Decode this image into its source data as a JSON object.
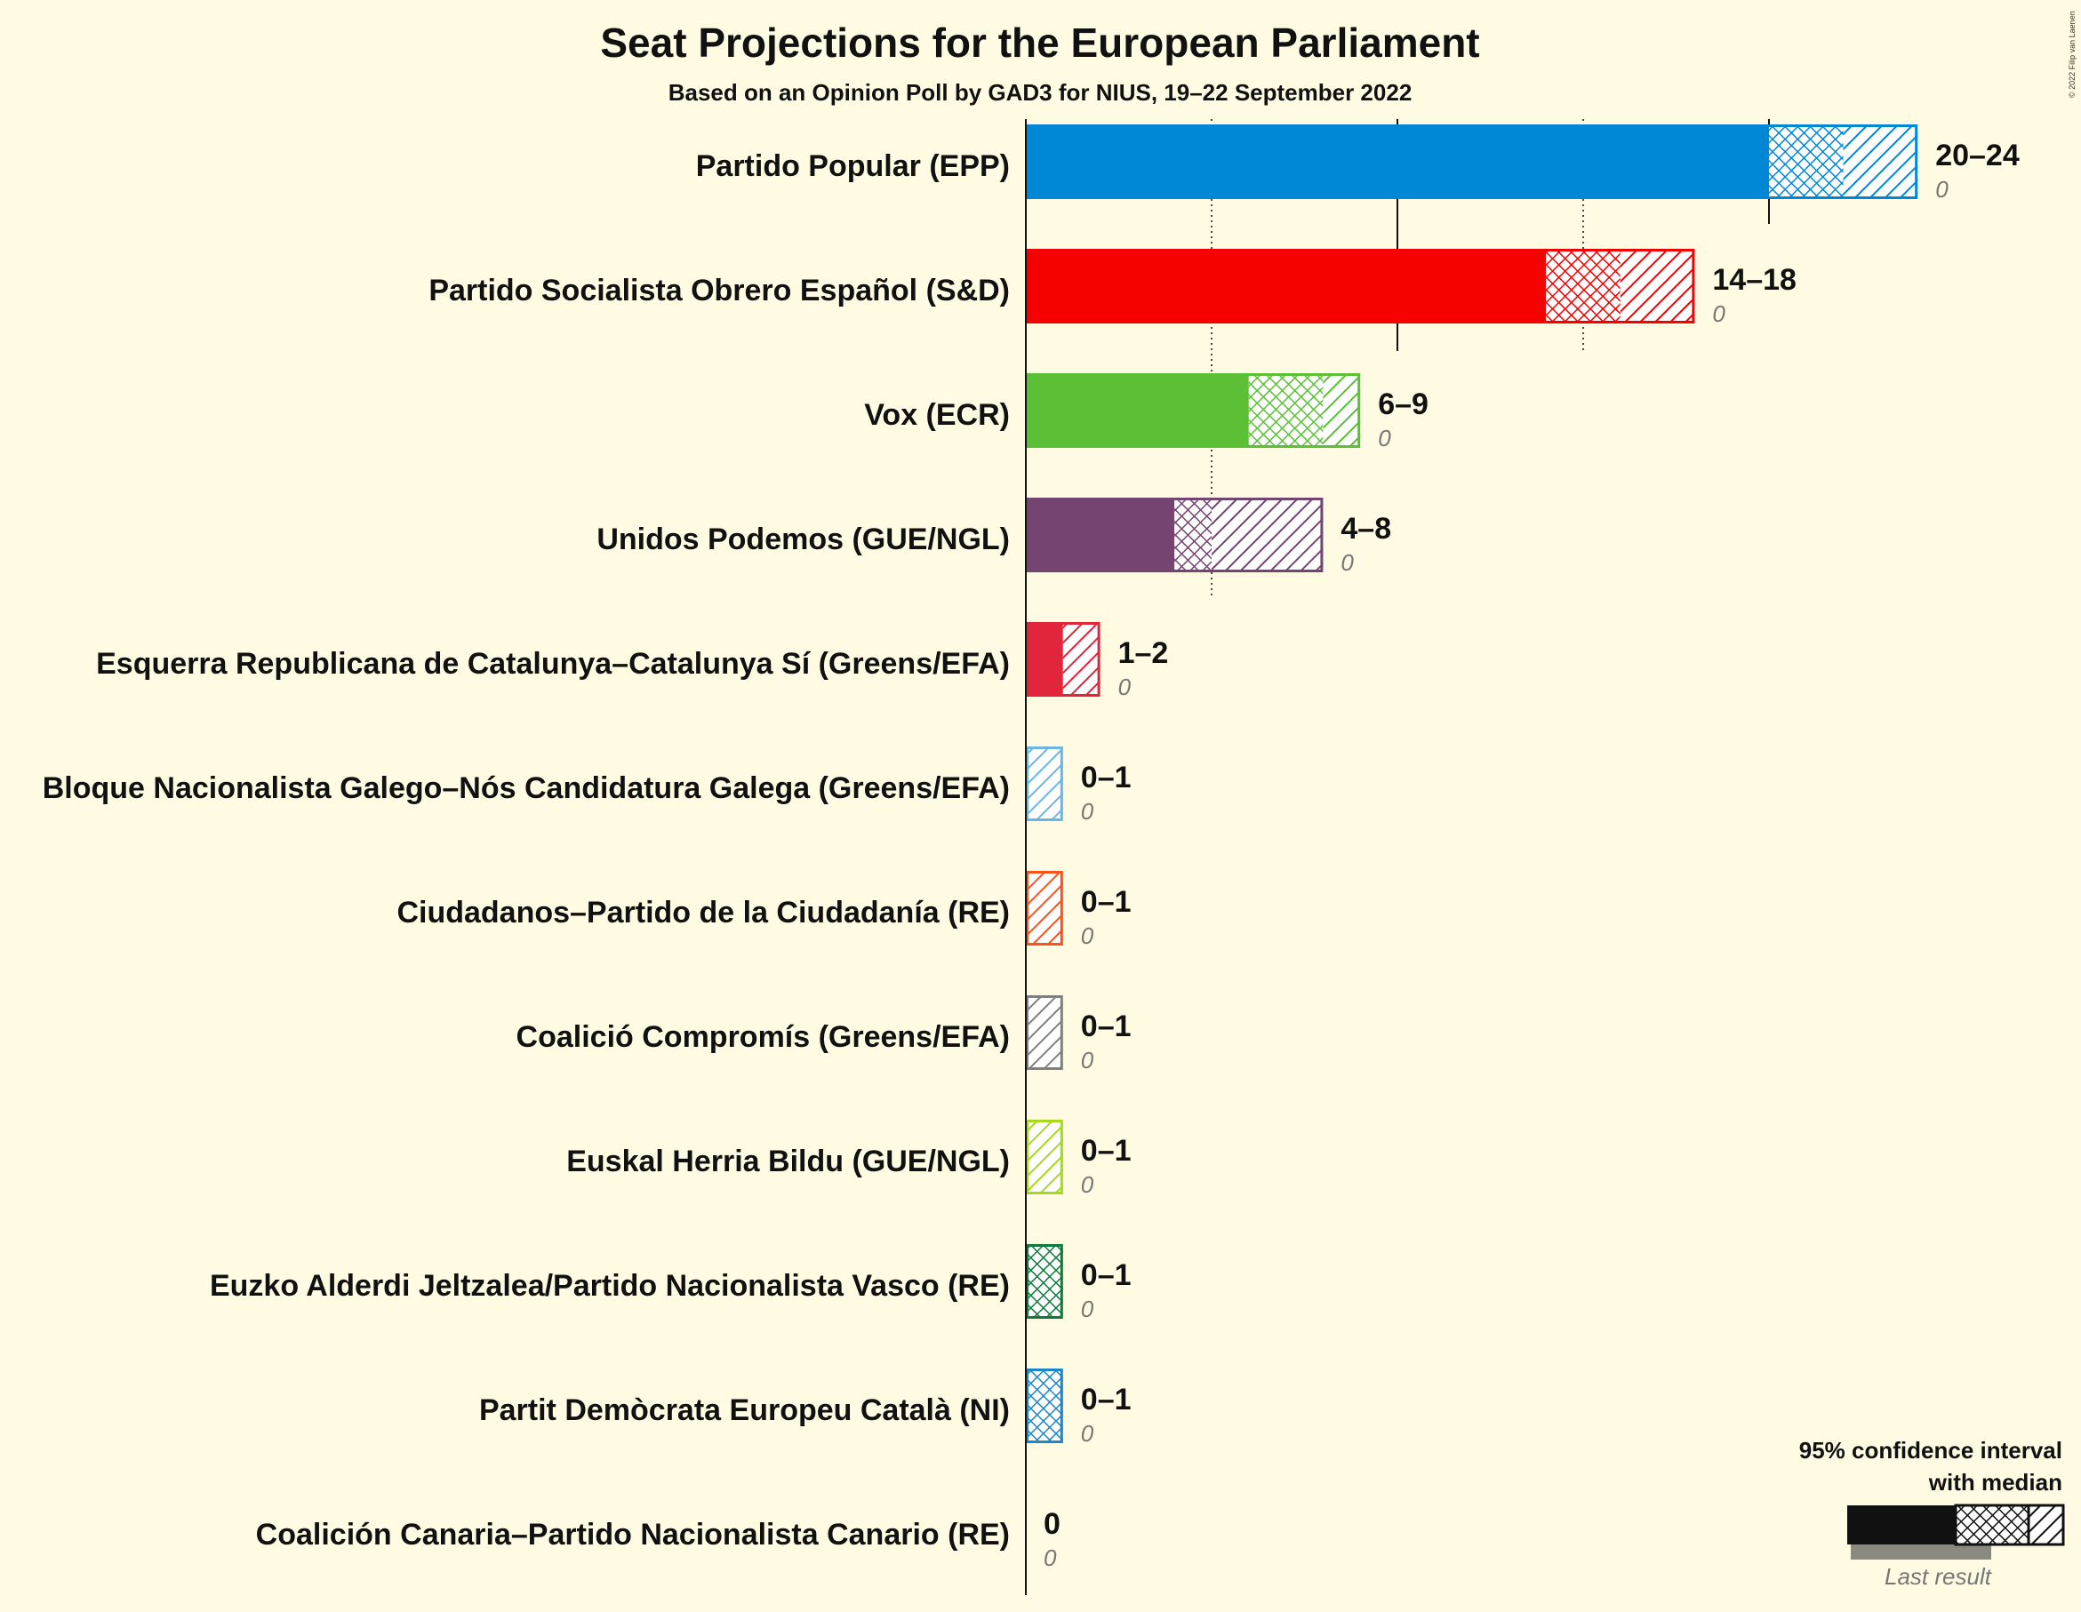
{
  "chart_data": {
    "type": "bar",
    "title": "Seat Projections for the European Parliament",
    "subtitle": "Based on an Opinion Poll by GAD3 for NIUS, 19–22 September 2022",
    "xlim": [
      0,
      24
    ],
    "gridlines": [
      5,
      10,
      15,
      20
    ],
    "series": [
      {
        "party": "Partido Popular (EPP)",
        "low": 20,
        "median": 22,
        "high": 24,
        "range_label": "20–24",
        "last_result": 0,
        "last_label": "0",
        "color": "#0088d6"
      },
      {
        "party": "Partido Socialista Obrero Español (S&D)",
        "low": 14,
        "median": 16,
        "high": 18,
        "range_label": "14–18",
        "last_result": 0,
        "last_label": "0",
        "color": "#f70000"
      },
      {
        "party": "Vox (ECR)",
        "low": 6,
        "median": 8,
        "high": 9,
        "range_label": "6–9",
        "last_result": 0,
        "last_label": "0",
        "color": "#5bc035"
      },
      {
        "party": "Unidos Podemos (GUE/NGL)",
        "low": 4,
        "median": 5,
        "high": 8,
        "range_label": "4–8",
        "last_result": 0,
        "last_label": "0",
        "color": "#744570"
      },
      {
        "party": "Esquerra Republicana de Catalunya–Catalunya Sí (Greens/EFA)",
        "low": 1,
        "median": 1,
        "high": 2,
        "range_label": "1–2",
        "last_result": 0,
        "last_label": "0",
        "color": "#e1263c"
      },
      {
        "party": "Bloque Nacionalista Galego–Nós Candidatura Galega (Greens/EFA)",
        "low": 0,
        "median": 0,
        "high": 1,
        "range_label": "0–1",
        "last_result": 0,
        "last_label": "0",
        "color": "#6bb5e4"
      },
      {
        "party": "Ciudadanos–Partido de la Ciudadanía (RE)",
        "low": 0,
        "median": 0,
        "high": 1,
        "range_label": "0–1",
        "last_result": 0,
        "last_label": "0",
        "color": "#f8531c"
      },
      {
        "party": "Coalició Compromís (Greens/EFA)",
        "low": 0,
        "median": 0,
        "high": 1,
        "range_label": "0–1",
        "last_result": 0,
        "last_label": "0",
        "color": "#808080"
      },
      {
        "party": "Euskal Herria Bildu (GUE/NGL)",
        "low": 0,
        "median": 0,
        "high": 1,
        "range_label": "0–1",
        "last_result": 0,
        "last_label": "0",
        "color": "#a6d81c"
      },
      {
        "party": "Euzko Alderdi Jeltzalea/Partido Nacionalista Vasco (RE)",
        "low": 0,
        "median": 1,
        "high": 1,
        "range_label": "0–1",
        "last_result": 0,
        "last_label": "0",
        "color": "#117a3a"
      },
      {
        "party": "Partit Demòcrata Europeu Català (NI)",
        "low": 0,
        "median": 1,
        "high": 1,
        "range_label": "0–1",
        "last_result": 0,
        "last_label": "0",
        "color": "#1c86c8"
      },
      {
        "party": "Coalición Canaria–Partido Nacionalista Canario (RE)",
        "low": 0,
        "median": 0,
        "high": 0,
        "range_label": "0",
        "last_result": 0,
        "last_label": "0",
        "color": "#ffd700"
      }
    ],
    "legend": {
      "line1": "95% confidence interval",
      "line2": "with median",
      "last": "Last result"
    },
    "copyright": "© 2022 Filip van Laenen"
  }
}
